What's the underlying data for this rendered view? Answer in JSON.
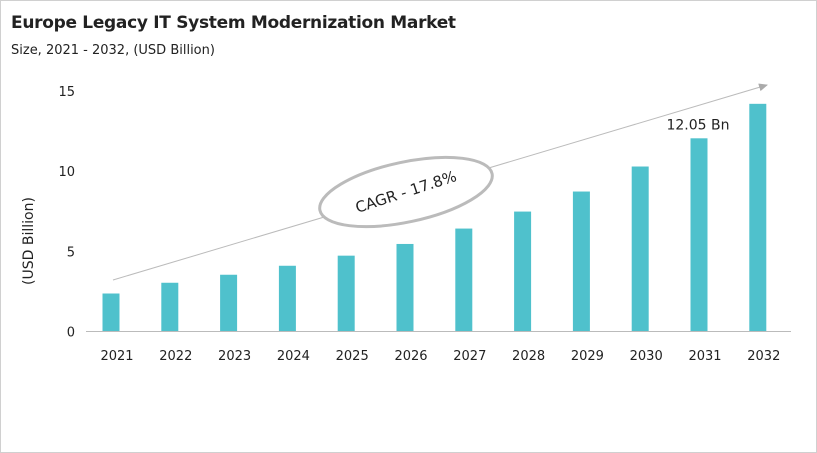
{
  "chart_data": {
    "type": "bar",
    "title": "Europe Legacy IT System Modernization Market",
    "subtitle": "Size, 2021 - 2032, (USD Billion)",
    "ylabel": "(USD Billion)",
    "xlabel": "",
    "categories": [
      "2021",
      "2022",
      "2023",
      "2024",
      "2025",
      "2026",
      "2027",
      "2028",
      "2029",
      "2030",
      "2031",
      "2032"
    ],
    "values": [
      2.37,
      3.04,
      3.54,
      4.1,
      4.73,
      5.46,
      6.42,
      7.48,
      8.73,
      10.29,
      12.05,
      14.2
    ],
    "ylim": [
      0,
      15
    ],
    "yticks": [
      0,
      5,
      10,
      15
    ],
    "grid": false,
    "bar_color": "#4fc1cc",
    "annotations": {
      "cagr": "CAGR - 17.8%",
      "value_label": "12.05 Bn",
      "value_label_category": "2031"
    }
  }
}
